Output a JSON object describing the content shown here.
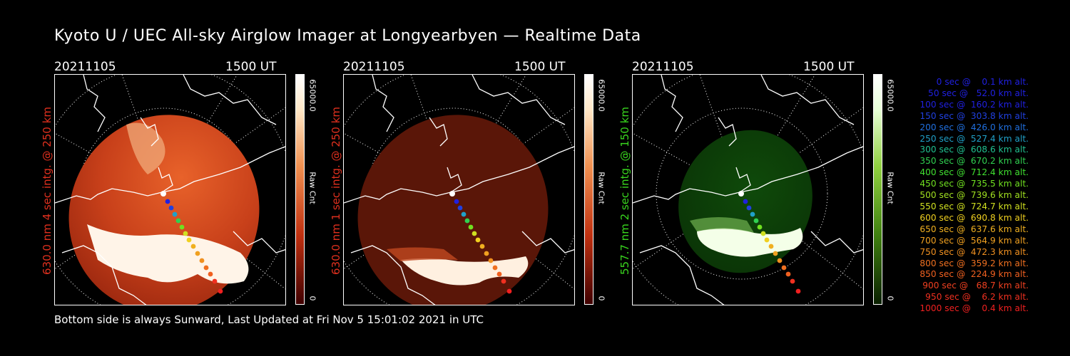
{
  "title": "Kyoto U / UEC All-sky Airglow Imager at Longyearbyen — Realtime Data",
  "footer": "Bottom side is always Sunward, Last Updated at Fri Nov  5 15:01:02 2021 in UTC",
  "panels": [
    {
      "date": "20211105",
      "time": "1500 UT",
      "side_label": "630.0 nm 4 sec intg. @ 250 km",
      "side_color": "#e0301e",
      "colorbar_max": "65000.0",
      "colorbar_min": "0",
      "colorbar_unit": "Raw Cnt",
      "colormap": "red"
    },
    {
      "date": "20211105",
      "time": "1500 UT",
      "side_label": "630.0 nm 1 sec intg. @ 250 km",
      "side_color": "#e0301e",
      "colorbar_max": "65000.0",
      "colorbar_min": "0",
      "colorbar_unit": "Raw Cnt",
      "colormap": "dark-red"
    },
    {
      "date": "20211105",
      "time": "1500 UT",
      "side_label": "557.7 nm 2 sec intg. @ 150 km",
      "side_color": "#39d61e",
      "colorbar_max": "65000.0",
      "colorbar_min": "0",
      "colorbar_unit": "Raw Cnt",
      "colormap": "green"
    }
  ],
  "legend": [
    {
      "text": "   0 sec @    0.1 km alt.",
      "color": "#2020e0"
    },
    {
      "text": "  50 sec @   52.0 km alt.",
      "color": "#2020e0"
    },
    {
      "text": " 100 sec @  160.2 km alt.",
      "color": "#2020e0"
    },
    {
      "text": " 150 sec @  303.8 km alt.",
      "color": "#2040e0"
    },
    {
      "text": " 200 sec @  426.0 km alt.",
      "color": "#2070e0"
    },
    {
      "text": " 250 sec @  527.4 km alt.",
      "color": "#20a0c8"
    },
    {
      "text": " 300 sec @  608.6 km alt.",
      "color": "#20c090"
    },
    {
      "text": " 350 sec @  670.2 km alt.",
      "color": "#30d050"
    },
    {
      "text": " 400 sec @  712.4 km alt.",
      "color": "#40e030"
    },
    {
      "text": " 450 sec @  735.5 km alt.",
      "color": "#70e020"
    },
    {
      "text": " 500 sec @  739.6 km alt.",
      "color": "#a0e020"
    },
    {
      "text": " 550 sec @  724.7 km alt.",
      "color": "#d0e020"
    },
    {
      "text": " 600 sec @  690.8 km alt.",
      "color": "#f0d020"
    },
    {
      "text": " 650 sec @  637.6 km alt.",
      "color": "#f0b020"
    },
    {
      "text": " 700 sec @  564.9 km alt.",
      "color": "#f0a020"
    },
    {
      "text": " 750 sec @  472.3 km alt.",
      "color": "#f09020"
    },
    {
      "text": " 800 sec @  359.2 km alt.",
      "color": "#f07020"
    },
    {
      "text": " 850 sec @  224.9 km alt.",
      "color": "#f06020"
    },
    {
      "text": " 900 sec @   68.7 km alt.",
      "color": "#f04020"
    },
    {
      "text": " 950 sec @    6.2 km alt.",
      "color": "#f03020"
    },
    {
      "text": "1000 sec @    0.4 km alt.",
      "color": "#f02020"
    }
  ]
}
